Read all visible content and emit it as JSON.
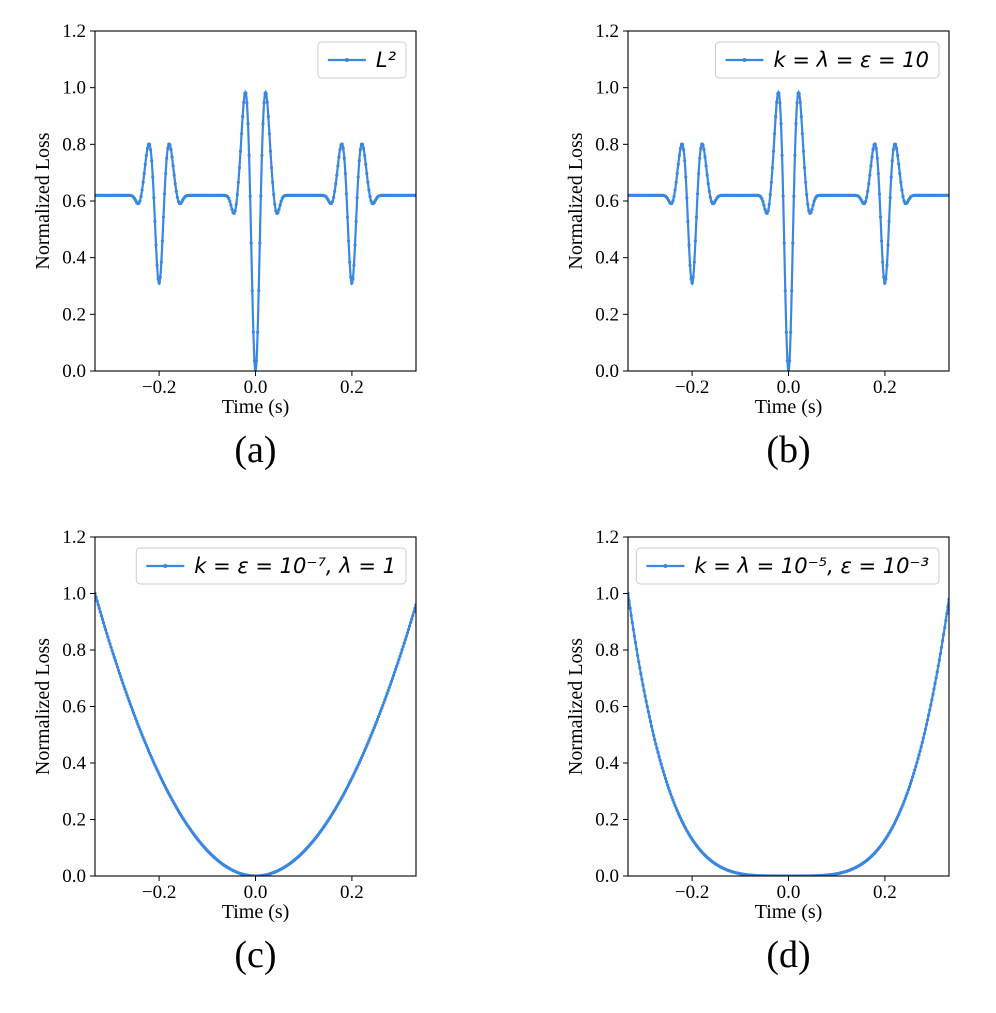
{
  "chart_data": [
    {
      "type": "line",
      "panel_label": "(a)",
      "legend": {
        "label": "L²",
        "position": "top-right"
      },
      "xlabel": "Time (s)",
      "ylabel": "Normalized Loss",
      "xlim": [
        -0.333,
        0.333
      ],
      "ylim": [
        0,
        1.2
      ],
      "xticks": [
        -0.2,
        0.0,
        0.2
      ],
      "xtick_labels": [
        "−0.2",
        "0.0",
        "0.2"
      ],
      "yticks": [
        0,
        0.2,
        0.4,
        0.6,
        0.8,
        1.0,
        1.2
      ],
      "ytick_labels": [
        "0.0",
        "0.2",
        "0.4",
        "0.6",
        "0.8",
        "1.0",
        "1.2"
      ],
      "grid": false,
      "color": "#3a87e0",
      "curve": "oscillatory",
      "curve_params": {
        "baseline": 0.62,
        "center_min": 0.0,
        "center_peaks": 1.0,
        "center_peak_offset": 0.02,
        "side_centers": [
          -0.2,
          0.2
        ],
        "side_peaks": 0.81,
        "side_min": 0.31,
        "side_peak_offset": 0.02
      },
      "series": [
        {
          "name": "L²"
        }
      ]
    },
    {
      "type": "line",
      "panel_label": "(b)",
      "legend": {
        "label": "k = λ = ε = 10",
        "position": "top-right"
      },
      "xlabel": "Time (s)",
      "ylabel": "Normalized Loss",
      "xlim": [
        -0.333,
        0.333
      ],
      "ylim": [
        0,
        1.2
      ],
      "xticks": [
        -0.2,
        0.0,
        0.2
      ],
      "xtick_labels": [
        "−0.2",
        "0.0",
        "0.2"
      ],
      "yticks": [
        0,
        0.2,
        0.4,
        0.6,
        0.8,
        1.0,
        1.2
      ],
      "ytick_labels": [
        "0.0",
        "0.2",
        "0.4",
        "0.6",
        "0.8",
        "1.0",
        "1.2"
      ],
      "grid": false,
      "color": "#3a87e0",
      "curve": "oscillatory",
      "curve_params": {
        "baseline": 0.62,
        "center_min": 0.0,
        "center_peaks": 1.0,
        "center_peak_offset": 0.02,
        "side_centers": [
          -0.2,
          0.2
        ],
        "side_peaks": 0.81,
        "side_min": 0.31,
        "side_peak_offset": 0.02
      },
      "series": [
        {
          "name": "k = λ = ε = 10"
        }
      ]
    },
    {
      "type": "line",
      "panel_label": "(c)",
      "legend": {
        "label": "k = ε = 10⁻⁷, λ = 1",
        "position": "top-right"
      },
      "xlabel": "Time (s)",
      "ylabel": "Normalized Loss",
      "xlim": [
        -0.333,
        0.333
      ],
      "ylim": [
        0,
        1.2
      ],
      "xticks": [
        -0.2,
        0.0,
        0.2
      ],
      "xtick_labels": [
        "−0.2",
        "0.0",
        "0.2"
      ],
      "yticks": [
        0,
        0.2,
        0.4,
        0.6,
        0.8,
        1.0,
        1.2
      ],
      "ytick_labels": [
        "0.0",
        "0.2",
        "0.4",
        "0.6",
        "0.8",
        "1.0",
        "1.2"
      ],
      "grid": false,
      "color": "#3a87e0",
      "curve": "power",
      "curve_params": {
        "exponent": 2,
        "left_value": 1.0,
        "right_value": 0.96
      },
      "series": [
        {
          "name": "k = ε = 10⁻⁷, λ = 1"
        }
      ]
    },
    {
      "type": "line",
      "panel_label": "(d)",
      "legend": {
        "label": "k = λ = 10⁻⁵, ε = 10⁻³",
        "position": "top-right"
      },
      "xlabel": "Time (s)",
      "ylabel": "Normalized Loss",
      "xlim": [
        -0.333,
        0.333
      ],
      "ylim": [
        0,
        1.2
      ],
      "xticks": [
        -0.2,
        0.0,
        0.2
      ],
      "xtick_labels": [
        "−0.2",
        "0.0",
        "0.2"
      ],
      "yticks": [
        0,
        0.2,
        0.4,
        0.6,
        0.8,
        1.0,
        1.2
      ],
      "ytick_labels": [
        "0.0",
        "0.2",
        "0.4",
        "0.6",
        "0.8",
        "1.0",
        "1.2"
      ],
      "grid": false,
      "color": "#3a87e0",
      "curve": "power",
      "curve_params": {
        "exponent": 4,
        "left_value": 1.0,
        "right_value": 0.98
      },
      "series": [
        {
          "name": "k = λ = 10⁻⁵, ε = 10⁻³"
        }
      ]
    }
  ]
}
